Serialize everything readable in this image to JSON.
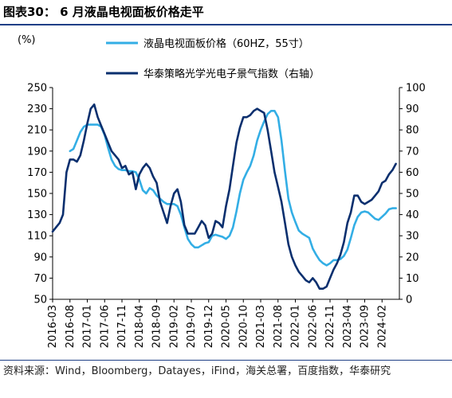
{
  "header": {
    "title": "图表30：  6 月液晶电视面板价格走平"
  },
  "footer": {
    "source": "资料来源：Wind，Bloomberg，Datayes，iFind，海关总署，百度指数，华泰研究"
  },
  "chart_data": {
    "type": "line",
    "ylabel_left": "(%)",
    "ylim_left": [
      50,
      250
    ],
    "yticks_left": [
      50,
      70,
      90,
      110,
      130,
      150,
      170,
      190,
      210,
      230,
      250
    ],
    "ylim_right": [
      0,
      100
    ],
    "yticks_right": [
      0,
      10,
      20,
      30,
      40,
      50,
      60,
      70,
      80,
      90,
      100
    ],
    "x_range": [
      "2016-03",
      "2024-07"
    ],
    "xticks": [
      "2016-03",
      "2016-08",
      "2017-01",
      "2017-06",
      "2017-11",
      "2018-04",
      "2018-09",
      "2019-02",
      "2019-07",
      "2019-12",
      "2020-05",
      "2020-10",
      "2021-03",
      "2021-08",
      "2022-01",
      "2022-06",
      "2022-11",
      "2023-04",
      "2023-09",
      "2024-02"
    ],
    "legend_placement": "top-center",
    "grid": false,
    "series": [
      {
        "name": "液晶电视面板价格（60HZ，55寸）",
        "axis": "left",
        "color": "#33aee5",
        "points": [
          [
            "2016-08",
            190
          ],
          [
            "2016-09",
            192
          ],
          [
            "2016-10",
            200
          ],
          [
            "2016-11",
            208
          ],
          [
            "2016-12",
            213
          ],
          [
            "2017-01",
            215
          ],
          [
            "2017-02",
            215
          ],
          [
            "2017-03",
            215
          ],
          [
            "2017-04",
            215
          ],
          [
            "2017-05",
            213
          ],
          [
            "2017-06",
            205
          ],
          [
            "2017-07",
            193
          ],
          [
            "2017-08",
            182
          ],
          [
            "2017-09",
            176
          ],
          [
            "2017-10",
            173
          ],
          [
            "2017-11",
            172
          ],
          [
            "2017-12",
            172
          ],
          [
            "2018-01",
            171
          ],
          [
            "2018-02",
            171
          ],
          [
            "2018-03",
            170
          ],
          [
            "2018-04",
            163
          ],
          [
            "2018-05",
            153
          ],
          [
            "2018-06",
            150
          ],
          [
            "2018-07",
            155
          ],
          [
            "2018-08",
            153
          ],
          [
            "2018-09",
            148
          ],
          [
            "2018-10",
            145
          ],
          [
            "2018-11",
            142
          ],
          [
            "2018-12",
            140
          ],
          [
            "2019-01",
            140
          ],
          [
            "2019-02",
            140
          ],
          [
            "2019-03",
            138
          ],
          [
            "2019-04",
            130
          ],
          [
            "2019-05",
            118
          ],
          [
            "2019-06",
            107
          ],
          [
            "2019-07",
            102
          ],
          [
            "2019-08",
            99
          ],
          [
            "2019-09",
            99
          ],
          [
            "2019-10",
            101
          ],
          [
            "2019-11",
            103
          ],
          [
            "2019-12",
            104
          ],
          [
            "2020-01",
            110
          ],
          [
            "2020-02",
            111
          ],
          [
            "2020-03",
            110
          ],
          [
            "2020-04",
            109
          ],
          [
            "2020-05",
            107
          ],
          [
            "2020-06",
            110
          ],
          [
            "2020-07",
            118
          ],
          [
            "2020-08",
            133
          ],
          [
            "2020-09",
            150
          ],
          [
            "2020-10",
            163
          ],
          [
            "2020-11",
            170
          ],
          [
            "2020-12",
            176
          ],
          [
            "2021-01",
            186
          ],
          [
            "2021-02",
            200
          ],
          [
            "2021-03",
            210
          ],
          [
            "2021-04",
            218
          ],
          [
            "2021-05",
            225
          ],
          [
            "2021-06",
            228
          ],
          [
            "2021-07",
            228
          ],
          [
            "2021-08",
            222
          ],
          [
            "2021-09",
            200
          ],
          [
            "2021-10",
            171
          ],
          [
            "2021-11",
            145
          ],
          [
            "2021-12",
            132
          ],
          [
            "2022-01",
            123
          ],
          [
            "2022-02",
            115
          ],
          [
            "2022-03",
            112
          ],
          [
            "2022-04",
            110
          ],
          [
            "2022-05",
            108
          ],
          [
            "2022-06",
            98
          ],
          [
            "2022-07",
            92
          ],
          [
            "2022-08",
            87
          ],
          [
            "2022-09",
            84
          ],
          [
            "2022-10",
            82
          ],
          [
            "2022-11",
            84
          ],
          [
            "2022-12",
            87
          ],
          [
            "2023-01",
            87
          ],
          [
            "2023-02",
            88
          ],
          [
            "2023-03",
            91
          ],
          [
            "2023-04",
            97
          ],
          [
            "2023-05",
            108
          ],
          [
            "2023-06",
            120
          ],
          [
            "2023-07",
            128
          ],
          [
            "2023-08",
            132
          ],
          [
            "2023-09",
            133
          ],
          [
            "2023-10",
            132
          ],
          [
            "2023-11",
            129
          ],
          [
            "2023-12",
            126
          ],
          [
            "2024-01",
            125
          ],
          [
            "2024-02",
            128
          ],
          [
            "2024-03",
            131
          ],
          [
            "2024-04",
            135
          ],
          [
            "2024-05",
            136
          ],
          [
            "2024-06",
            136
          ]
        ]
      },
      {
        "name": "华泰策略光学光电子景气指数（右轴）",
        "axis": "right",
        "color": "#0a2f6e",
        "points": [
          [
            "2016-03",
            32
          ],
          [
            "2016-04",
            34
          ],
          [
            "2016-05",
            36
          ],
          [
            "2016-06",
            40
          ],
          [
            "2016-07",
            60
          ],
          [
            "2016-08",
            66
          ],
          [
            "2016-09",
            66
          ],
          [
            "2016-10",
            65
          ],
          [
            "2016-11",
            68
          ],
          [
            "2016-12",
            75
          ],
          [
            "2017-01",
            83
          ],
          [
            "2017-02",
            90
          ],
          [
            "2017-03",
            92
          ],
          [
            "2017-04",
            86
          ],
          [
            "2017-05",
            82
          ],
          [
            "2017-06",
            78
          ],
          [
            "2017-07",
            74
          ],
          [
            "2017-08",
            70
          ],
          [
            "2017-09",
            68
          ],
          [
            "2017-10",
            66
          ],
          [
            "2017-11",
            62
          ],
          [
            "2017-12",
            63
          ],
          [
            "2018-01",
            59
          ],
          [
            "2018-02",
            60
          ],
          [
            "2018-03",
            52
          ],
          [
            "2018-04",
            59
          ],
          [
            "2018-05",
            62
          ],
          [
            "2018-06",
            64
          ],
          [
            "2018-07",
            62
          ],
          [
            "2018-08",
            58
          ],
          [
            "2018-09",
            55
          ],
          [
            "2018-10",
            46
          ],
          [
            "2018-11",
            41
          ],
          [
            "2018-12",
            36
          ],
          [
            "2019-01",
            44
          ],
          [
            "2019-02",
            50
          ],
          [
            "2019-03",
            52
          ],
          [
            "2019-04",
            46
          ],
          [
            "2019-05",
            35
          ],
          [
            "2019-06",
            31
          ],
          [
            "2019-07",
            31
          ],
          [
            "2019-08",
            31
          ],
          [
            "2019-09",
            34
          ],
          [
            "2019-10",
            37
          ],
          [
            "2019-11",
            35
          ],
          [
            "2019-12",
            29
          ],
          [
            "2020-01",
            31
          ],
          [
            "2020-02",
            37
          ],
          [
            "2020-03",
            36
          ],
          [
            "2020-04",
            34
          ],
          [
            "2020-05",
            44
          ],
          [
            "2020-06",
            52
          ],
          [
            "2020-07",
            63
          ],
          [
            "2020-08",
            74
          ],
          [
            "2020-09",
            81
          ],
          [
            "2020-10",
            86
          ],
          [
            "2020-11",
            86
          ],
          [
            "2020-12",
            87
          ],
          [
            "2021-01",
            89
          ],
          [
            "2021-02",
            90
          ],
          [
            "2021-03",
            89
          ],
          [
            "2021-04",
            88
          ],
          [
            "2021-05",
            80
          ],
          [
            "2021-06",
            70
          ],
          [
            "2021-07",
            60
          ],
          [
            "2021-08",
            53
          ],
          [
            "2021-09",
            46
          ],
          [
            "2021-10",
            36
          ],
          [
            "2021-11",
            26
          ],
          [
            "2021-12",
            20
          ],
          [
            "2022-01",
            16
          ],
          [
            "2022-02",
            13
          ],
          [
            "2022-03",
            11
          ],
          [
            "2022-04",
            9
          ],
          [
            "2022-05",
            8
          ],
          [
            "2022-06",
            10
          ],
          [
            "2022-07",
            8
          ],
          [
            "2022-08",
            5
          ],
          [
            "2022-09",
            5
          ],
          [
            "2022-10",
            6
          ],
          [
            "2022-11",
            10
          ],
          [
            "2022-12",
            14
          ],
          [
            "2023-01",
            17
          ],
          [
            "2023-02",
            21
          ],
          [
            "2023-03",
            27
          ],
          [
            "2023-04",
            36
          ],
          [
            "2023-05",
            41
          ],
          [
            "2023-06",
            49
          ],
          [
            "2023-07",
            49
          ],
          [
            "2023-08",
            46
          ],
          [
            "2023-09",
            45
          ],
          [
            "2023-10",
            46
          ],
          [
            "2023-11",
            47
          ],
          [
            "2023-12",
            49
          ],
          [
            "2024-01",
            51
          ],
          [
            "2024-02",
            55
          ],
          [
            "2024-03",
            56
          ],
          [
            "2024-04",
            59
          ],
          [
            "2024-05",
            61
          ],
          [
            "2024-06",
            64
          ]
        ]
      }
    ]
  }
}
